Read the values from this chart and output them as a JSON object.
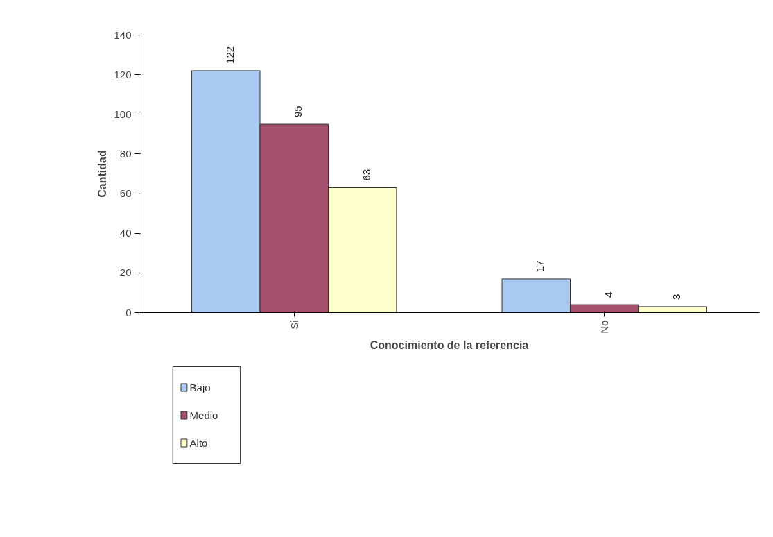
{
  "chart_data": {
    "type": "bar",
    "xlabel": "Conocimiento de la referencia",
    "ylabel": "Cantidad",
    "categories": [
      "Si",
      "No"
    ],
    "series": [
      {
        "name": "Bajo",
        "color": "#a9c9f2",
        "values": [
          122,
          17
        ]
      },
      {
        "name": "Medio",
        "color": "#a4506f",
        "values": [
          95,
          4
        ]
      },
      {
        "name": "Alto",
        "color": "#ffffcc",
        "values": [
          63,
          3
        ]
      }
    ],
    "ylim": [
      0,
      140
    ],
    "yticks": [
      0,
      20,
      40,
      60,
      80,
      100,
      120,
      140
    ],
    "data_labels": true,
    "grid": false,
    "legend": "bottom left"
  }
}
